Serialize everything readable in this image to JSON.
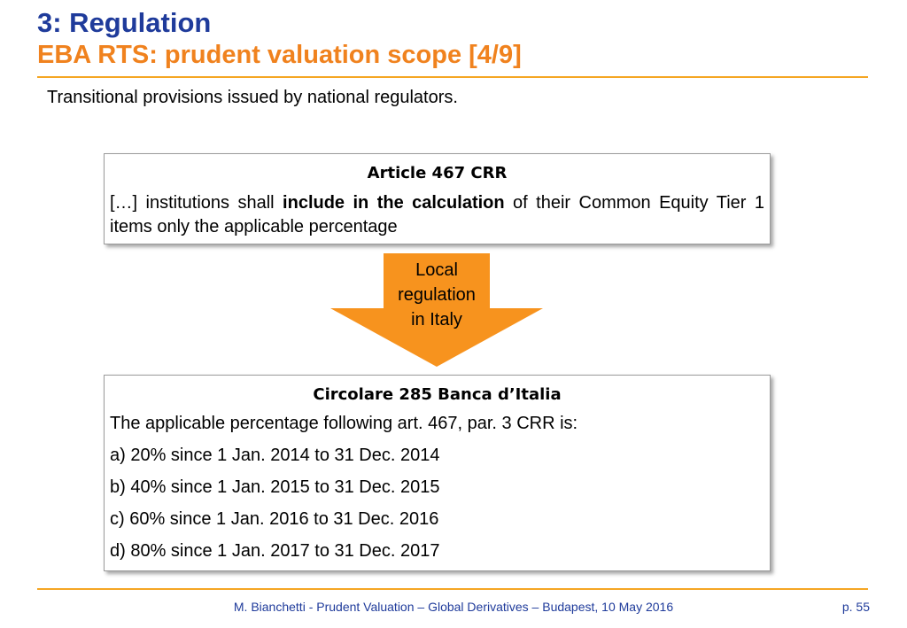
{
  "header": {
    "title": "3: Regulation",
    "subtitle": "EBA RTS: prudent valuation scope [4/9]"
  },
  "intro": "Transitional provisions issued by national regulators.",
  "article_box": {
    "title": "Article 467 CRR",
    "body_start": "[…] institutions shall ",
    "body_bold": "include in the calculation",
    "body_end": " of their Common Equity Tier 1 items only the applicable percentage"
  },
  "arrow": {
    "label_line1": "Local",
    "label_line2": "regulation",
    "label_line3": "in Italy",
    "color": "#f7931e"
  },
  "circolare_box": {
    "title": "Circolare 285 Banca d’Italia",
    "intro": "The applicable percentage following art. 467, par. 3 CRR is:",
    "items": [
      "a) 20% since 1 Jan. 2014 to 31 Dec. 2014",
      "b) 40% since 1 Jan. 2015 to 31 Dec. 2015",
      "c) 60% since 1 Jan. 2016 to 31 Dec. 2016",
      "d) 80% since 1 Jan. 2017 to 31 Dec. 2017"
    ]
  },
  "footer": {
    "text": "M. Bianchetti - Prudent Valuation – Global Derivatives – Budapest, 10 May 2016",
    "page": "p. 55"
  },
  "colors": {
    "title_blue": "#1f3b9b",
    "subtitle_orange": "#f0821e",
    "rule": "#f5a623"
  }
}
